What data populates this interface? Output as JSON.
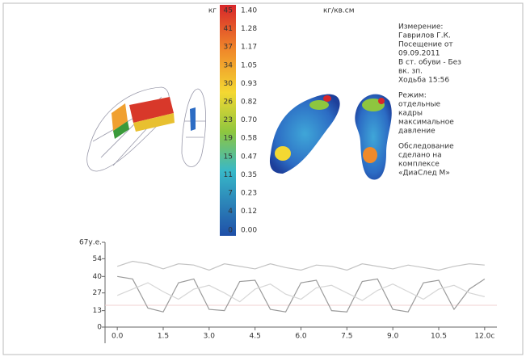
{
  "scale": {
    "unit_left": "кг",
    "unit_right": "кг/кв.см",
    "left": [
      "45",
      "41",
      "37",
      "34",
      "30",
      "26",
      "23",
      "19",
      "15",
      "11",
      "7",
      "4",
      "0"
    ],
    "right": [
      "1.40",
      "1.28",
      "1.17",
      "1.05",
      "0.93",
      "0.82",
      "0.70",
      "0.58",
      "0.47",
      "0.35",
      "0.23",
      "0.12",
      "0.00"
    ]
  },
  "info": {
    "groups": [
      [
        "Измерение:",
        "Гаврилов Г.К.",
        "Посещение от",
        "09.09.2011",
        "В ст. обуви - Без",
        "вк. зп.",
        "Ходьба 15:56"
      ],
      [
        "Режим:",
        "отдельные",
        "кадры",
        "максимальное",
        "давление"
      ],
      [
        "Обследование",
        "сделано на",
        "комплексе",
        "«ДиаСлед М»"
      ]
    ]
  },
  "chart_data": {
    "type": "line",
    "x": [
      0,
      0.5,
      1,
      1.5,
      2,
      2.5,
      3,
      3.5,
      4,
      4.5,
      5,
      5.5,
      6,
      6.5,
      7,
      7.5,
      8,
      8.5,
      9,
      9.5,
      10,
      10.5,
      11,
      11.5,
      12
    ],
    "series": [
      {
        "color": "#9a9a9a",
        "values": [
          40,
          38,
          15,
          12,
          35,
          38,
          14,
          13,
          36,
          37,
          14,
          12,
          35,
          37,
          13,
          12,
          36,
          38,
          14,
          12,
          35,
          37,
          14,
          30,
          38
        ]
      },
      {
        "color": "#c4c4c4",
        "values": [
          48,
          52,
          50,
          46,
          50,
          49,
          45,
          50,
          48,
          46,
          50,
          47,
          45,
          49,
          48,
          45,
          50,
          48,
          46,
          49,
          47,
          45,
          48,
          50,
          49
        ]
      },
      {
        "color": "#d6d6d6",
        "values": [
          25,
          30,
          35,
          28,
          22,
          30,
          33,
          27,
          20,
          30,
          34,
          26,
          22,
          31,
          33,
          27,
          21,
          29,
          34,
          28,
          22,
          30,
          33,
          27,
          24
        ]
      }
    ],
    "xlim": [
      -0.4,
      12.4
    ],
    "ylim": [
      0,
      67
    ],
    "yticks": [
      0,
      13,
      27,
      40,
      54,
      {
        "value": 67,
        "label": "67у.е."
      }
    ],
    "xticks": [
      {
        "value": 0,
        "label": "0.0"
      },
      {
        "value": 1.5,
        "label": "1.5"
      },
      {
        "value": 3,
        "label": "3.0"
      },
      {
        "value": 4.5,
        "label": "4.5"
      },
      {
        "value": 6,
        "label": "6.0"
      },
      {
        "value": 7.5,
        "label": "7.5"
      },
      {
        "value": 9,
        "label": "9.0"
      },
      {
        "value": 10.5,
        "label": "10.5"
      },
      {
        "value": 12,
        "label": "12.0с"
      }
    ]
  }
}
